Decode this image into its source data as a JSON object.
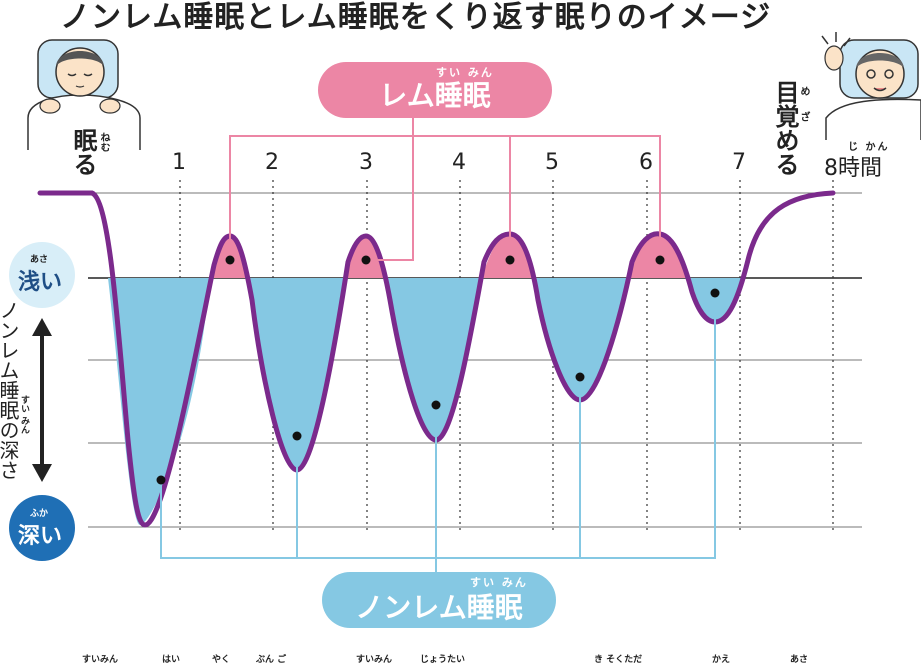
{
  "title": "ノンレム睡眠とレム睡眠をくり返す眠りのイメージ",
  "rem_label": {
    "text": "レム睡眠",
    "ruby": "すい みん"
  },
  "nrem_label": {
    "text": "ノンレム睡眠",
    "ruby": "すい みん"
  },
  "hours": [
    "1",
    "2",
    "3",
    "4",
    "5",
    "6",
    "7"
  ],
  "hour_end": {
    "number": "8",
    "unit": "時間",
    "ruby": "じ かん"
  },
  "sleep_start": {
    "text": "眠る",
    "ruby": "ねむ"
  },
  "wake_up": {
    "text": "目覚める",
    "ruby": "め ざ"
  },
  "shallow": {
    "text": "浅い",
    "ruby": "あさ"
  },
  "deep": {
    "text": "深い",
    "ruby": "ふか"
  },
  "depth_axis": {
    "text": "ノンレム睡眠の深さ",
    "ruby": "すい みん"
  },
  "bottom_ruby": [
    "すいみん",
    "はい",
    "やく",
    "ぶん ご",
    "すいみん",
    "じょうたい",
    "き そくただ",
    "かえ",
    "あさ"
  ],
  "colors": {
    "rem": "#ec86a5",
    "nrem": "#85c8e3",
    "curve": "#7b2a8c",
    "shallow_circle": "#d8eef8",
    "deep_circle": "#1f6fb5"
  },
  "icons": [
    "sleeping-person-icon",
    "waking-person-icon"
  ]
}
